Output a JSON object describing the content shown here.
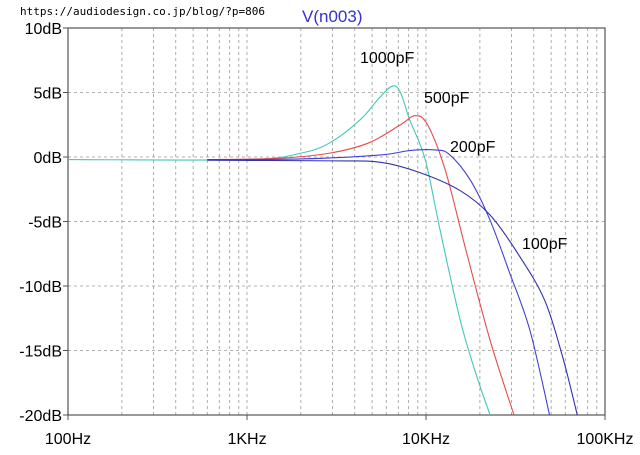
{
  "header": {
    "url": "https://audiodesign.co.jp/blog/?p=806"
  },
  "chart_data": {
    "type": "line",
    "title": "V(n003)",
    "xlabel": "",
    "ylabel": "",
    "xscale": "log",
    "xlim": [
      100,
      100000
    ],
    "ylim": [
      -20,
      10
    ],
    "grid": true,
    "x_tick_labels": [
      "100Hz",
      "1KHz",
      "10KHz",
      "100KHz"
    ],
    "x_tick_values": [
      100,
      1000,
      10000,
      100000
    ],
    "y_tick_labels": [
      "10dB",
      "5dB",
      "0dB",
      "-5dB",
      "-10dB",
      "-15dB",
      "-20dB"
    ],
    "y_tick_values": [
      10,
      5,
      0,
      -5,
      -10,
      -15,
      -20
    ],
    "series": [
      {
        "name": "1000pF",
        "color": "#40c8b8",
        "points": [
          [
            100,
            -0.2
          ],
          [
            1000,
            -0.2
          ],
          [
            2000,
            0.3
          ],
          [
            2900,
            1.1
          ],
          [
            4300,
            2.9
          ],
          [
            5500,
            4.6
          ],
          [
            6500,
            5.5
          ],
          [
            7200,
            5.0
          ],
          [
            8100,
            2.9
          ],
          [
            9900,
            -0.2
          ],
          [
            12000,
            -5.7
          ],
          [
            15500,
            -12.6
          ],
          [
            19000,
            -16.8
          ],
          [
            22800,
            -20
          ]
        ]
      },
      {
        "name": "500pF",
        "color": "#e84a4a",
        "points": [
          [
            600,
            -0.2
          ],
          [
            1500,
            -0.1
          ],
          [
            2900,
            0.3
          ],
          [
            4800,
            1.1
          ],
          [
            7200,
            2.5
          ],
          [
            8700,
            3.2
          ],
          [
            10200,
            2.5
          ],
          [
            12800,
            -1.0
          ],
          [
            16700,
            -7.2
          ],
          [
            22800,
            -14.2
          ],
          [
            31000,
            -20
          ]
        ]
      },
      {
        "name": "200pF",
        "color": "#4040d8",
        "points": [
          [
            600,
            -0.2
          ],
          [
            2000,
            -0.15
          ],
          [
            5500,
            0.15
          ],
          [
            8100,
            0.5
          ],
          [
            11200,
            0.55
          ],
          [
            13500,
            0.2
          ],
          [
            17700,
            -1.8
          ],
          [
            22800,
            -4.9
          ],
          [
            29000,
            -8.8
          ],
          [
            38000,
            -13.4
          ],
          [
            49000,
            -20
          ]
        ]
      },
      {
        "name": "100pF",
        "color": "#3030b0",
        "points": [
          [
            600,
            -0.25
          ],
          [
            3000,
            -0.3
          ],
          [
            5500,
            -0.4
          ],
          [
            9200,
            -1.2
          ],
          [
            15500,
            -2.6
          ],
          [
            22800,
            -4.5
          ],
          [
            33000,
            -7.6
          ],
          [
            46000,
            -11.1
          ],
          [
            58000,
            -15.5
          ],
          [
            70000,
            -20
          ]
        ]
      }
    ],
    "annotations": [
      "1000pF",
      "500pF",
      "200pF",
      "100pF"
    ]
  }
}
